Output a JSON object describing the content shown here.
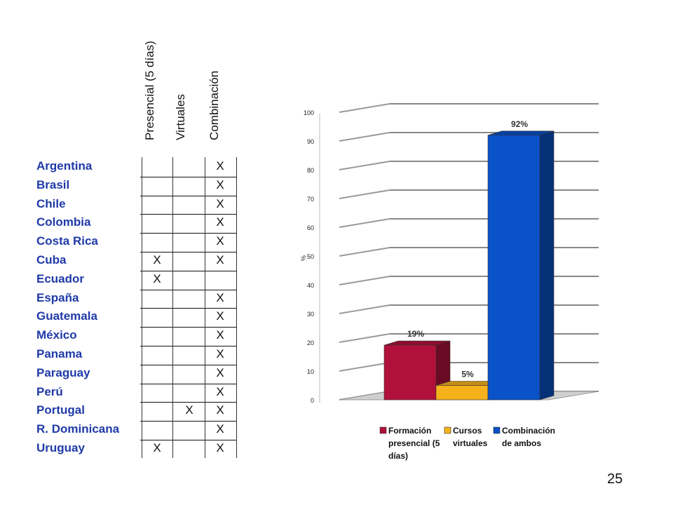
{
  "table": {
    "columns": [
      "Presencial (5 días)",
      "Virtuales",
      "Combinación"
    ],
    "rows": [
      {
        "country": "Argentina",
        "marks": [
          "",
          "",
          "X"
        ]
      },
      {
        "country": "Brasil",
        "marks": [
          "",
          "",
          "X"
        ]
      },
      {
        "country": "Chile",
        "marks": [
          "",
          "",
          "X"
        ]
      },
      {
        "country": "Colombia",
        "marks": [
          "",
          "",
          "X"
        ]
      },
      {
        "country": "Costa Rica",
        "marks": [
          "",
          "",
          "X"
        ]
      },
      {
        "country": "Cuba",
        "marks": [
          "X",
          "",
          "X"
        ]
      },
      {
        "country": "Ecuador",
        "marks": [
          "X",
          "",
          ""
        ]
      },
      {
        "country": "España",
        "marks": [
          "",
          "",
          "X"
        ]
      },
      {
        "country": "Guatemala",
        "marks": [
          "",
          "",
          "X"
        ]
      },
      {
        "country": "México",
        "marks": [
          "",
          "",
          "X"
        ]
      },
      {
        "country": "Panama",
        "marks": [
          "",
          "",
          "X"
        ]
      },
      {
        "country": "Paraguay",
        "marks": [
          "",
          "",
          "X"
        ]
      },
      {
        "country": "Perú",
        "marks": [
          "",
          "",
          "X"
        ]
      },
      {
        "country": "Portugal",
        "marks": [
          "",
          "X",
          "X"
        ]
      },
      {
        "country": "R. Dominicana",
        "marks": [
          "",
          "",
          "X"
        ]
      },
      {
        "country": "Uruguay",
        "marks": [
          "X",
          "",
          "X"
        ]
      }
    ]
  },
  "page_number": "25",
  "colors": {
    "country_text": "#1f3aa8",
    "series": [
      "#b0103a",
      "#f5b21a",
      "#0a52c8"
    ]
  },
  "chart_data": {
    "type": "bar",
    "categories": [
      "Formación presencial (5 días)",
      "Cursos virtuales",
      "Combinación de ambos"
    ],
    "values": [
      19,
      5,
      92
    ],
    "data_labels": [
      "19%",
      "5%",
      "92%"
    ],
    "ylabel": "%",
    "ylim": [
      0,
      100
    ],
    "yticks": [
      "0",
      "10",
      "20",
      "30",
      "40",
      "50",
      "60",
      "70",
      "80",
      "90",
      "100"
    ],
    "legend": [
      [
        "Formación",
        "presencial (5",
        "días)"
      ],
      [
        "Cursos",
        "virtuales"
      ],
      [
        "Combinación",
        "de ambos"
      ]
    ],
    "legend_position": "bottom",
    "grid": true,
    "style": "3d"
  }
}
